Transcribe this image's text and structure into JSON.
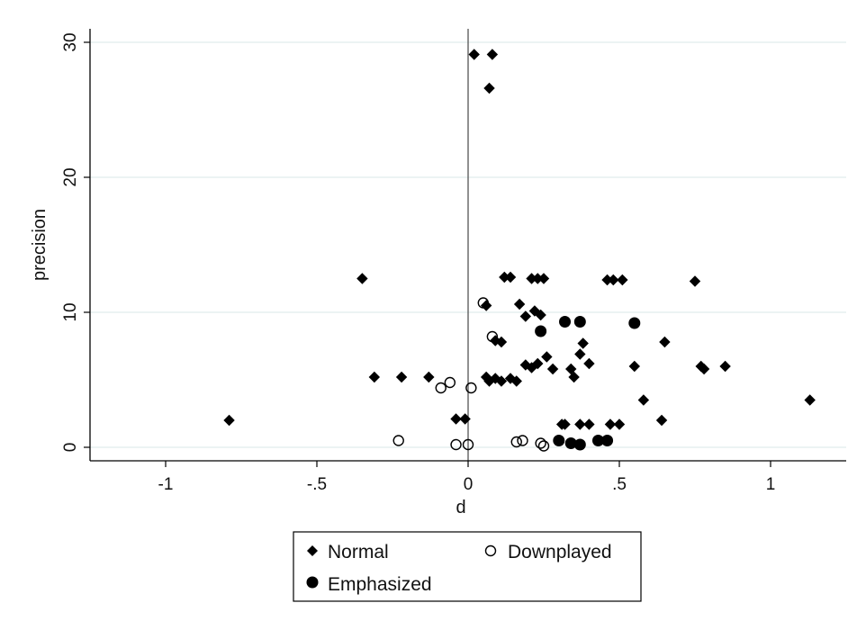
{
  "chart_data": {
    "type": "scatter",
    "xlabel": "d",
    "ylabel": "precision",
    "xlim": [
      -1.25,
      1.25
    ],
    "ylim": [
      -1,
      31
    ],
    "x_ticks": [
      -1,
      -0.5,
      0,
      0.5,
      1
    ],
    "x_tick_labels": [
      "-1",
      "-.5",
      "0",
      ".5",
      "1"
    ],
    "y_ticks": [
      0,
      10,
      20,
      30
    ],
    "y_tick_labels": [
      "0",
      "10",
      "20",
      "30"
    ],
    "grid": "horizontal",
    "reference_line_x": 0,
    "legend_position": "bottom",
    "series": [
      {
        "name": "Normal",
        "marker": "diamond",
        "color": "#000000",
        "points": [
          [
            0.02,
            29.1
          ],
          [
            0.08,
            29.1
          ],
          [
            0.07,
            26.6
          ],
          [
            -0.35,
            12.5
          ],
          [
            0.12,
            12.6
          ],
          [
            0.14,
            12.6
          ],
          [
            0.21,
            12.5
          ],
          [
            0.23,
            12.5
          ],
          [
            0.25,
            12.5
          ],
          [
            0.46,
            12.4
          ],
          [
            0.48,
            12.4
          ],
          [
            0.51,
            12.4
          ],
          [
            0.75,
            12.3
          ],
          [
            0.06,
            10.5
          ],
          [
            0.17,
            10.6
          ],
          [
            0.22,
            10.1
          ],
          [
            0.24,
            9.8
          ],
          [
            0.19,
            9.7
          ],
          [
            0.09,
            7.9
          ],
          [
            0.11,
            7.8
          ],
          [
            0.38,
            7.7
          ],
          [
            0.37,
            6.9
          ],
          [
            0.26,
            6.7
          ],
          [
            0.65,
            7.8
          ],
          [
            0.23,
            6.2
          ],
          [
            0.19,
            6.1
          ],
          [
            0.21,
            5.9
          ],
          [
            0.28,
            5.8
          ],
          [
            0.34,
            5.8
          ],
          [
            0.4,
            6.2
          ],
          [
            0.35,
            5.2
          ],
          [
            0.55,
            6.0
          ],
          [
            0.77,
            6.0
          ],
          [
            0.78,
            5.8
          ],
          [
            0.85,
            6.0
          ],
          [
            -0.31,
            5.2
          ],
          [
            -0.22,
            5.2
          ],
          [
            -0.13,
            5.2
          ],
          [
            0.06,
            5.2
          ],
          [
            0.07,
            4.9
          ],
          [
            0.09,
            5.1
          ],
          [
            0.11,
            4.9
          ],
          [
            0.14,
            5.1
          ],
          [
            0.16,
            4.9
          ],
          [
            0.58,
            3.5
          ],
          [
            1.13,
            3.5
          ],
          [
            -0.79,
            2.0
          ],
          [
            -0.04,
            2.1
          ],
          [
            -0.01,
            2.1
          ],
          [
            0.31,
            1.7
          ],
          [
            0.32,
            1.7
          ],
          [
            0.37,
            1.7
          ],
          [
            0.4,
            1.7
          ],
          [
            0.47,
            1.7
          ],
          [
            0.5,
            1.7
          ],
          [
            0.64,
            2.0
          ]
        ]
      },
      {
        "name": "Downplayed",
        "marker": "hollow-circle",
        "color": "#000000",
        "points": [
          [
            0.05,
            10.7
          ],
          [
            0.08,
            8.2
          ],
          [
            -0.06,
            4.8
          ],
          [
            -0.09,
            4.4
          ],
          [
            0.01,
            4.4
          ],
          [
            -0.23,
            0.5
          ],
          [
            -0.04,
            0.2
          ],
          [
            0.0,
            0.2
          ],
          [
            0.16,
            0.4
          ],
          [
            0.18,
            0.5
          ],
          [
            0.24,
            0.3
          ],
          [
            0.25,
            0.1
          ]
        ]
      },
      {
        "name": "Emphasized",
        "marker": "filled-circle",
        "color": "#000000",
        "points": [
          [
            0.32,
            9.3
          ],
          [
            0.37,
            9.3
          ],
          [
            0.55,
            9.2
          ],
          [
            0.24,
            8.6
          ],
          [
            0.3,
            0.5
          ],
          [
            0.34,
            0.3
          ],
          [
            0.37,
            0.2
          ],
          [
            0.43,
            0.5
          ],
          [
            0.46,
            0.5
          ]
        ]
      }
    ]
  }
}
